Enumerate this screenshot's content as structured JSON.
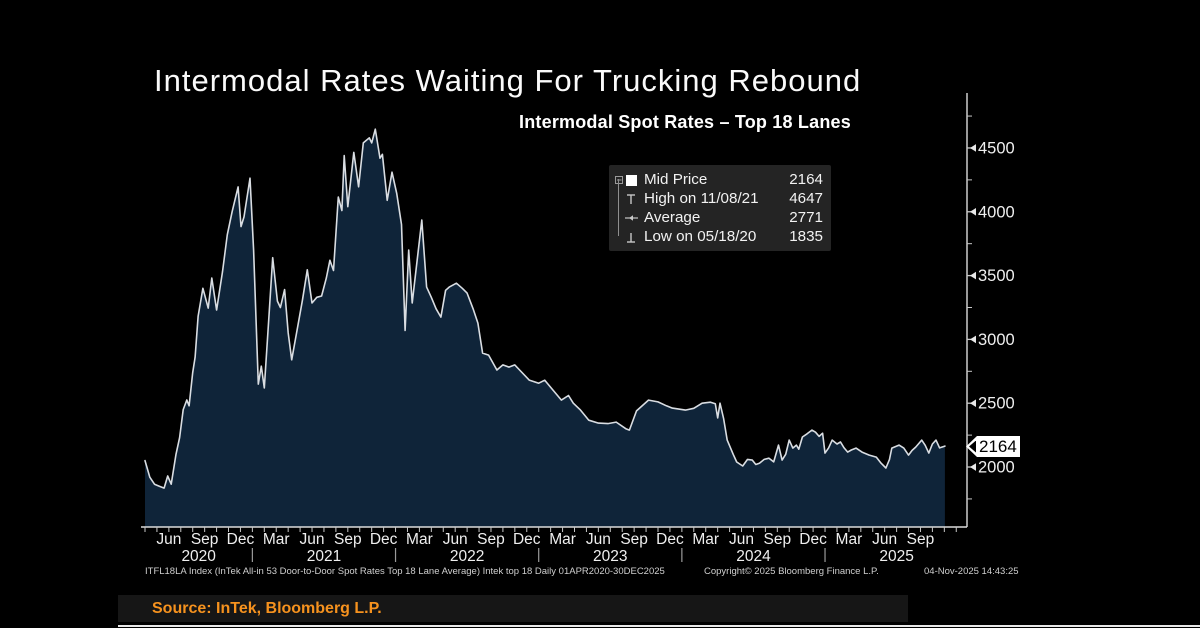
{
  "title": "Intermodal Rates Waiting For Trucking Rebound",
  "chart": {
    "subtitle": "Intermodal Spot Rates – Top 18 Lanes",
    "legend": {
      "rows": [
        {
          "icon": "mid-price-square",
          "label": "Mid Price",
          "value": "2164"
        },
        {
          "icon": "high-whisker",
          "label": "High on 11/08/21",
          "value": "4647"
        },
        {
          "icon": "average-marker",
          "label": "Average",
          "value": "2771"
        },
        {
          "icon": "low-whisker",
          "label": "Low on 05/18/20",
          "value": "1835"
        }
      ]
    },
    "last_price_badge": "2164"
  },
  "chart_data": {
    "type": "area",
    "title": "Intermodal Spot Rates – Top 18 Lanes",
    "x_unit": "months since 2020-04-01",
    "x_range": [
      0,
      68.9
    ],
    "ylim": [
      1530,
      4915
    ],
    "y_ticks": [
      2000,
      2500,
      3000,
      3500,
      4000,
      4500
    ],
    "y_minor_ticks": [
      1750,
      2250,
      2750,
      3250,
      3750,
      4250,
      4750
    ],
    "grid": false,
    "legend_position": "upper-right",
    "x_month_ticks": [
      {
        "m": 2,
        "label": "Jun"
      },
      {
        "m": 5,
        "label": "Sep"
      },
      {
        "m": 8,
        "label": "Dec"
      },
      {
        "m": 11,
        "label": "Mar"
      },
      {
        "m": 14,
        "label": "Jun"
      },
      {
        "m": 17,
        "label": "Sep"
      },
      {
        "m": 20,
        "label": "Dec"
      },
      {
        "m": 23,
        "label": "Mar"
      },
      {
        "m": 26,
        "label": "Jun"
      },
      {
        "m": 29,
        "label": "Sep"
      },
      {
        "m": 32,
        "label": "Dec"
      },
      {
        "m": 35,
        "label": "Mar"
      },
      {
        "m": 38,
        "label": "Jun"
      },
      {
        "m": 41,
        "label": "Sep"
      },
      {
        "m": 44,
        "label": "Dec"
      },
      {
        "m": 47,
        "label": "Mar"
      },
      {
        "m": 50,
        "label": "Jun"
      },
      {
        "m": 53,
        "label": "Sep"
      },
      {
        "m": 56,
        "label": "Dec"
      },
      {
        "m": 59,
        "label": "Mar"
      },
      {
        "m": 62,
        "label": "Jun"
      },
      {
        "m": 65,
        "label": "Sep"
      }
    ],
    "year_labels": [
      {
        "label": "2020",
        "m": 4.5
      },
      {
        "label": "2021",
        "m": 15
      },
      {
        "label": "2022",
        "m": 27
      },
      {
        "label": "2023",
        "m": 39
      },
      {
        "label": "2024",
        "m": 51
      },
      {
        "label": "2025",
        "m": 63
      }
    ],
    "year_separators_m": [
      9,
      21,
      33,
      45,
      57
    ],
    "stats": {
      "mid_price": 2164,
      "high": {
        "date": "11/08/21",
        "value": 4647
      },
      "average": 2771,
      "low": {
        "date": "05/18/20",
        "value": 1835
      }
    },
    "series": [
      {
        "name": "ITFL18LA Index Mid Price",
        "points": [
          [
            0,
            2050
          ],
          [
            0.4,
            1920
          ],
          [
            0.8,
            1865
          ],
          [
            1.2,
            1850
          ],
          [
            1.6,
            1835
          ],
          [
            1.9,
            1930
          ],
          [
            2.2,
            1865
          ],
          [
            2.6,
            2100
          ],
          [
            2.9,
            2230
          ],
          [
            3.2,
            2450
          ],
          [
            3.5,
            2525
          ],
          [
            3.7,
            2480
          ],
          [
            4.0,
            2740
          ],
          [
            4.2,
            2860
          ],
          [
            4.45,
            3180
          ],
          [
            4.85,
            3400
          ],
          [
            5.3,
            3245
          ],
          [
            5.6,
            3480
          ],
          [
            6.0,
            3230
          ],
          [
            6.5,
            3530
          ],
          [
            6.9,
            3820
          ],
          [
            7.3,
            4000
          ],
          [
            7.8,
            4195
          ],
          [
            8.05,
            3884
          ],
          [
            8.3,
            3960
          ],
          [
            8.8,
            4263
          ],
          [
            9.1,
            3700
          ],
          [
            9.5,
            2650
          ],
          [
            9.75,
            2790
          ],
          [
            10.0,
            2620
          ],
          [
            10.4,
            3200
          ],
          [
            10.7,
            3640
          ],
          [
            11.1,
            3300
          ],
          [
            11.35,
            3250
          ],
          [
            11.7,
            3390
          ],
          [
            12.0,
            3050
          ],
          [
            12.3,
            2840
          ],
          [
            12.8,
            3100
          ],
          [
            13.2,
            3310
          ],
          [
            13.6,
            3545
          ],
          [
            14.0,
            3285
          ],
          [
            14.4,
            3330
          ],
          [
            14.8,
            3340
          ],
          [
            15.2,
            3480
          ],
          [
            15.5,
            3620
          ],
          [
            15.8,
            3540
          ],
          [
            16.2,
            4115
          ],
          [
            16.5,
            4010
          ],
          [
            16.7,
            4440
          ],
          [
            17.0,
            4040
          ],
          [
            17.5,
            4465
          ],
          [
            17.9,
            4196
          ],
          [
            18.3,
            4540
          ],
          [
            18.8,
            4580
          ],
          [
            19.0,
            4540
          ],
          [
            19.3,
            4647
          ],
          [
            19.7,
            4420
          ],
          [
            19.9,
            4450
          ],
          [
            20.3,
            4090
          ],
          [
            20.7,
            4310
          ],
          [
            21.1,
            4145
          ],
          [
            21.5,
            3900
          ],
          [
            21.8,
            3070
          ],
          [
            22.1,
            3700
          ],
          [
            22.4,
            3285
          ],
          [
            23.2,
            3935
          ],
          [
            23.6,
            3410
          ],
          [
            24.0,
            3330
          ],
          [
            24.4,
            3240
          ],
          [
            24.8,
            3175
          ],
          [
            25.2,
            3385
          ],
          [
            25.5,
            3410
          ],
          [
            26.1,
            3440
          ],
          [
            26.6,
            3400
          ],
          [
            27.0,
            3363
          ],
          [
            27.5,
            3240
          ],
          [
            27.9,
            3128
          ],
          [
            28.3,
            2893
          ],
          [
            28.8,
            2877
          ],
          [
            29.5,
            2760
          ],
          [
            30.0,
            2800
          ],
          [
            30.5,
            2783
          ],
          [
            31.0,
            2800
          ],
          [
            31.4,
            2760
          ],
          [
            32.2,
            2681
          ],
          [
            33.0,
            2657
          ],
          [
            33.5,
            2680
          ],
          [
            34.2,
            2603
          ],
          [
            34.9,
            2524
          ],
          [
            35.5,
            2560
          ],
          [
            35.9,
            2500
          ],
          [
            36.5,
            2446
          ],
          [
            37.2,
            2367
          ],
          [
            38.0,
            2344
          ],
          [
            38.8,
            2340
          ],
          [
            39.5,
            2352
          ],
          [
            40.3,
            2300
          ],
          [
            40.6,
            2289
          ],
          [
            41.2,
            2440
          ],
          [
            42.2,
            2524
          ],
          [
            43.0,
            2510
          ],
          [
            43.7,
            2480
          ],
          [
            44.2,
            2462
          ],
          [
            45.3,
            2446
          ],
          [
            46.0,
            2460
          ],
          [
            46.7,
            2500
          ],
          [
            47.4,
            2508
          ],
          [
            47.8,
            2495
          ],
          [
            48.0,
            2385
          ],
          [
            48.2,
            2500
          ],
          [
            48.5,
            2380
          ],
          [
            48.8,
            2211
          ],
          [
            49.3,
            2100
          ],
          [
            49.6,
            2039
          ],
          [
            50.1,
            2008
          ],
          [
            50.5,
            2060
          ],
          [
            50.9,
            2054
          ],
          [
            51.2,
            2020
          ],
          [
            51.5,
            2030
          ],
          [
            51.9,
            2060
          ],
          [
            52.3,
            2069
          ],
          [
            52.7,
            2040
          ],
          [
            53.1,
            2172
          ],
          [
            53.4,
            2054
          ],
          [
            53.7,
            2100
          ],
          [
            54.0,
            2211
          ],
          [
            54.3,
            2148
          ],
          [
            54.6,
            2172
          ],
          [
            54.8,
            2140
          ],
          [
            55.1,
            2235
          ],
          [
            55.5,
            2260
          ],
          [
            55.9,
            2289
          ],
          [
            56.2,
            2273
          ],
          [
            56.5,
            2240
          ],
          [
            56.8,
            2265
          ],
          [
            57.0,
            2109
          ],
          [
            57.3,
            2150
          ],
          [
            57.6,
            2211
          ],
          [
            58.0,
            2180
          ],
          [
            58.3,
            2196
          ],
          [
            58.6,
            2150
          ],
          [
            58.9,
            2117
          ],
          [
            59.2,
            2133
          ],
          [
            59.6,
            2148
          ],
          [
            60.1,
            2117
          ],
          [
            60.7,
            2093
          ],
          [
            61.3,
            2078
          ],
          [
            61.7,
            2030
          ],
          [
            62.1,
            1992
          ],
          [
            62.4,
            2060
          ],
          [
            62.6,
            2148
          ],
          [
            63.2,
            2172
          ],
          [
            63.6,
            2148
          ],
          [
            64.0,
            2093
          ],
          [
            64.3,
            2130
          ],
          [
            64.6,
            2156
          ],
          [
            65.1,
            2211
          ],
          [
            65.4,
            2170
          ],
          [
            65.7,
            2109
          ],
          [
            66.0,
            2180
          ],
          [
            66.3,
            2211
          ],
          [
            66.6,
            2150
          ],
          [
            67.05,
            2164
          ]
        ]
      }
    ]
  },
  "colors": {
    "background": "#000000",
    "area_fill": "#0f2439",
    "line": "#d9dde2",
    "axis": "#c8c8c8",
    "tick_label": "#efefef",
    "accent_orange": "#f6921e",
    "badge_bg": "#ffffff"
  },
  "footer": {
    "index_note": "ITFL18LA Index (InTek All-in 53 Door-to-Door Spot Rates Top 18 Lane Average) Intek top 18 Daily 01APR2020-30DEC2025",
    "copyright": "Copyright© 2025 Bloomberg Finance L.P.",
    "datetime": "04-Nov-2025 14:43:25"
  },
  "source": "Source: InTek, Bloomberg L.P."
}
